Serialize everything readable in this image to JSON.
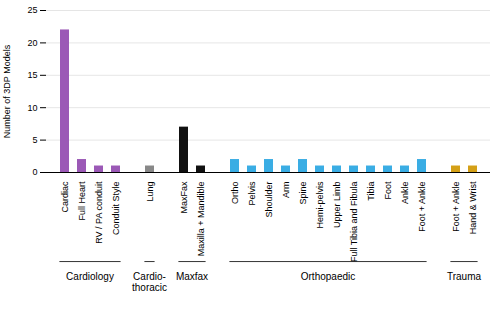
{
  "chart_data": {
    "type": "bar",
    "categories": [
      "Cardiac",
      "Full Heart",
      "RV / PA conduit",
      "Conduit Style",
      "Lung",
      "MaxFax",
      "Maxilla + Mandible",
      "Ortho",
      "Pelvis",
      "Shoulder",
      "Arm",
      "Spine",
      "Hemi-pelvis",
      "Upper Limb",
      "Full Tibia and Fibula",
      "Tibia",
      "Foot",
      "Ankle",
      "Foot + Ankle",
      "Foot + Ankle",
      "Hand & Wrist"
    ],
    "values": [
      22,
      2,
      1,
      1,
      1,
      7,
      1,
      2,
      1,
      2,
      1,
      2,
      1,
      1,
      1,
      1,
      1,
      1,
      2,
      1,
      1
    ],
    "colors": [
      "#9b59b6",
      "#9b59b6",
      "#9b59b6",
      "#9b59b6",
      "#888888",
      "#111111",
      "#111111",
      "#3aade4",
      "#3aade4",
      "#3aade4",
      "#3aade4",
      "#3aade4",
      "#3aade4",
      "#3aade4",
      "#3aade4",
      "#3aade4",
      "#3aade4",
      "#3aade4",
      "#3aade4",
      "#d4a017",
      "#d4a017"
    ],
    "groups": [
      {
        "label": "Cardiology",
        "size": 4
      },
      {
        "label": "Cardio-\nthoracic",
        "size": 1
      },
      {
        "label": "Maxfax",
        "size": 2
      },
      {
        "label": "Orthopaedic",
        "size": 12
      },
      {
        "label": "Trauma",
        "size": 2
      }
    ],
    "ylabel": "Number of 3DP Models",
    "ylim": [
      0,
      25
    ],
    "yticks": [
      0,
      5,
      10,
      15,
      20,
      25
    ],
    "grid": true
  }
}
